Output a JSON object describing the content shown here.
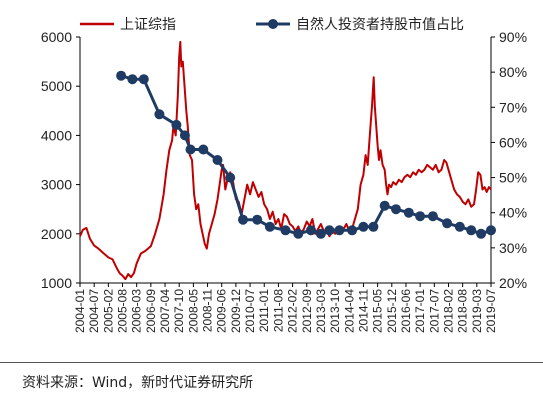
{
  "source_note": "资料来源：Wind，新时代证券研究所",
  "chart_data": {
    "type": "line",
    "x_categories": [
      "2004-01",
      "2004-07",
      "2005-02",
      "2005-08",
      "2006-03",
      "2006-09",
      "2007-04",
      "2007-10",
      "2008-05",
      "2008-11",
      "2009-06",
      "2009-12",
      "2010-07",
      "2011-01",
      "2011-08",
      "2012-02",
      "2012-09",
      "2013-03",
      "2013-10",
      "2014-04",
      "2014-11",
      "2015-05",
      "2015-12",
      "2016-06",
      "2017-01",
      "2017-07",
      "2018-02",
      "2018-08",
      "2019-03",
      "2019-07"
    ],
    "left_axis": {
      "ticks": [
        1000,
        2000,
        3000,
        4000,
        5000,
        6000
      ],
      "ylim": [
        1000,
        6000
      ]
    },
    "right_axis": {
      "ticks": [
        "20%",
        "30%",
        "40%",
        "50%",
        "60%",
        "70%",
        "80%",
        "90%"
      ],
      "ylim": [
        20,
        90
      ]
    },
    "grid": false,
    "legend_position": "top",
    "series": [
      {
        "name": "上证综指",
        "axis": "left",
        "color": "#c00000",
        "points": [
          [
            0,
            1950
          ],
          [
            0.2,
            2080
          ],
          [
            0.45,
            2120
          ],
          [
            0.7,
            1900
          ],
          [
            1.0,
            1760
          ],
          [
            1.3,
            1700
          ],
          [
            1.6,
            1620
          ],
          [
            2.0,
            1520
          ],
          [
            2.3,
            1480
          ],
          [
            2.6,
            1300
          ],
          [
            2.8,
            1200
          ],
          [
            3.0,
            1150
          ],
          [
            3.2,
            1080
          ],
          [
            3.4,
            1180
          ],
          [
            3.6,
            1120
          ],
          [
            3.8,
            1200
          ],
          [
            4.0,
            1400
          ],
          [
            4.3,
            1600
          ],
          [
            4.6,
            1650
          ],
          [
            5.0,
            1750
          ],
          [
            5.3,
            2000
          ],
          [
            5.6,
            2300
          ],
          [
            5.9,
            2800
          ],
          [
            6.1,
            3300
          ],
          [
            6.3,
            3700
          ],
          [
            6.5,
            3900
          ],
          [
            6.6,
            4200
          ],
          [
            6.75,
            4000
          ],
          [
            6.9,
            4800
          ],
          [
            7.0,
            5600
          ],
          [
            7.08,
            5900
          ],
          [
            7.15,
            5400
          ],
          [
            7.25,
            5500
          ],
          [
            7.35,
            5100
          ],
          [
            7.5,
            4500
          ],
          [
            7.6,
            4200
          ],
          [
            7.75,
            3600
          ],
          [
            7.9,
            3500
          ],
          [
            8.05,
            2800
          ],
          [
            8.2,
            2500
          ],
          [
            8.35,
            2600
          ],
          [
            8.5,
            2200
          ],
          [
            8.65,
            2000
          ],
          [
            8.8,
            1800
          ],
          [
            8.95,
            1700
          ],
          [
            9.1,
            2000
          ],
          [
            9.3,
            2200
          ],
          [
            9.5,
            2400
          ],
          [
            9.7,
            2700
          ],
          [
            9.85,
            3000
          ],
          [
            10.0,
            3300
          ],
          [
            10.1,
            3400
          ],
          [
            10.25,
            2900
          ],
          [
            10.4,
            3100
          ],
          [
            10.6,
            3250
          ],
          [
            10.8,
            3050
          ],
          [
            11.0,
            2700
          ],
          [
            11.2,
            2650
          ],
          [
            11.4,
            2400
          ],
          [
            11.6,
            2700
          ],
          [
            11.8,
            3000
          ],
          [
            12.0,
            2800
          ],
          [
            12.2,
            3050
          ],
          [
            12.4,
            2900
          ],
          [
            12.6,
            2750
          ],
          [
            12.8,
            2850
          ],
          [
            13.0,
            2600
          ],
          [
            13.2,
            2500
          ],
          [
            13.4,
            2300
          ],
          [
            13.6,
            2450
          ],
          [
            13.8,
            2200
          ],
          [
            14.0,
            2300
          ],
          [
            14.2,
            2100
          ],
          [
            14.4,
            2400
          ],
          [
            14.6,
            2350
          ],
          [
            14.8,
            2200
          ],
          [
            15.0,
            2150
          ],
          [
            15.2,
            2050
          ],
          [
            15.4,
            2150
          ],
          [
            15.6,
            2000
          ],
          [
            15.8,
            2100
          ],
          [
            16.0,
            2250
          ],
          [
            16.2,
            2150
          ],
          [
            16.4,
            2300
          ],
          [
            16.6,
            2000
          ],
          [
            16.8,
            2100
          ],
          [
            17.0,
            2200
          ],
          [
            17.2,
            2050
          ],
          [
            17.4,
            2100
          ],
          [
            17.6,
            1950
          ],
          [
            17.8,
            2050
          ],
          [
            18.0,
            2000
          ],
          [
            18.2,
            2100
          ],
          [
            18.4,
            2050
          ],
          [
            18.6,
            2100
          ],
          [
            18.8,
            2200
          ],
          [
            19.0,
            2050
          ],
          [
            19.2,
            2100
          ],
          [
            19.4,
            2300
          ],
          [
            19.6,
            2500
          ],
          [
            19.8,
            3000
          ],
          [
            20.0,
            3200
          ],
          [
            20.15,
            3600
          ],
          [
            20.3,
            3400
          ],
          [
            20.45,
            4000
          ],
          [
            20.6,
            4600
          ],
          [
            20.72,
            5180
          ],
          [
            20.8,
            4600
          ],
          [
            20.9,
            4200
          ],
          [
            21.0,
            3800
          ],
          [
            21.1,
            3500
          ],
          [
            21.2,
            3700
          ],
          [
            21.35,
            3400
          ],
          [
            21.5,
            3300
          ],
          [
            21.6,
            3000
          ],
          [
            21.7,
            2800
          ],
          [
            21.8,
            3000
          ],
          [
            21.95,
            2950
          ],
          [
            22.1,
            3050
          ],
          [
            22.3,
            3000
          ],
          [
            22.5,
            3100
          ],
          [
            22.7,
            3050
          ],
          [
            22.9,
            3150
          ],
          [
            23.1,
            3200
          ],
          [
            23.3,
            3150
          ],
          [
            23.5,
            3250
          ],
          [
            23.7,
            3200
          ],
          [
            23.9,
            3300
          ],
          [
            24.1,
            3250
          ],
          [
            24.3,
            3300
          ],
          [
            24.5,
            3400
          ],
          [
            24.7,
            3350
          ],
          [
            24.9,
            3300
          ],
          [
            25.1,
            3400
          ],
          [
            25.3,
            3250
          ],
          [
            25.5,
            3300
          ],
          [
            25.7,
            3500
          ],
          [
            25.85,
            3450
          ],
          [
            26.0,
            3300
          ],
          [
            26.2,
            3100
          ],
          [
            26.4,
            2900
          ],
          [
            26.6,
            2800
          ],
          [
            26.8,
            2750
          ],
          [
            27.0,
            2650
          ],
          [
            27.2,
            2600
          ],
          [
            27.4,
            2700
          ],
          [
            27.6,
            2550
          ],
          [
            27.8,
            2600
          ],
          [
            27.95,
            2900
          ],
          [
            28.1,
            3250
          ],
          [
            28.25,
            3200
          ],
          [
            28.4,
            2900
          ],
          [
            28.55,
            2950
          ],
          [
            28.7,
            2850
          ],
          [
            28.85,
            2950
          ],
          [
            29.0,
            2900
          ]
        ]
      },
      {
        "name": "自然人投资者持股市值占比",
        "axis": "right",
        "color": "#1f3b63",
        "points": [
          [
            2.9,
            79
          ],
          [
            3.7,
            78
          ],
          [
            4.5,
            78
          ],
          [
            5.6,
            68
          ],
          [
            6.8,
            65
          ],
          [
            7.4,
            62
          ],
          [
            7.8,
            58
          ],
          [
            8.7,
            58
          ],
          [
            9.7,
            55
          ],
          [
            10.6,
            50
          ],
          [
            11.5,
            38
          ],
          [
            12.5,
            38
          ],
          [
            13.4,
            36
          ],
          [
            14.5,
            35
          ],
          [
            15.4,
            34
          ],
          [
            16.3,
            35
          ],
          [
            17.0,
            34
          ],
          [
            17.6,
            35
          ],
          [
            18.3,
            35
          ],
          [
            19.2,
            35
          ],
          [
            20.0,
            36
          ],
          [
            20.7,
            36
          ],
          [
            21.5,
            42
          ],
          [
            22.3,
            41
          ],
          [
            23.2,
            40
          ],
          [
            24.0,
            39
          ],
          [
            24.9,
            39
          ],
          [
            25.9,
            37
          ],
          [
            26.8,
            36
          ],
          [
            27.6,
            35
          ],
          [
            28.3,
            34
          ],
          [
            29.0,
            35
          ]
        ]
      }
    ]
  }
}
